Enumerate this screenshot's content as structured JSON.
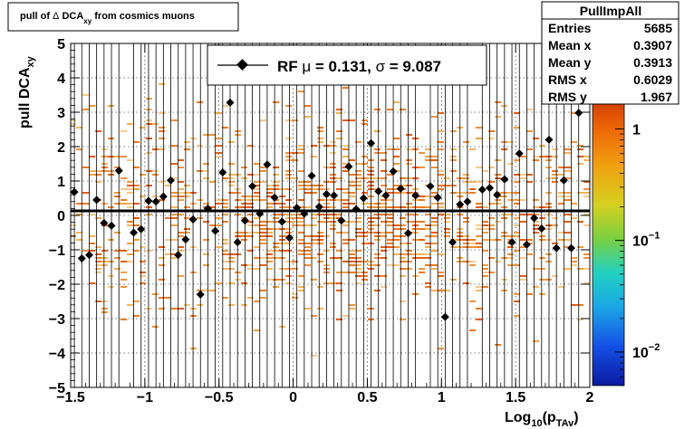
{
  "title_box": {
    "prefix": "pull of ",
    "delta": "Δ",
    "main": " DCA",
    "sub": "xy",
    "suffix": " from cosmics muons"
  },
  "stats_box": {
    "name": "PullImpAll",
    "rows": [
      {
        "label": "Entries",
        "value": "5685"
      },
      {
        "label": "Mean x",
        "value": "0.3907"
      },
      {
        "label": "Mean y",
        "value": "0.3913"
      },
      {
        "label": "RMS x",
        "value": "0.6029"
      },
      {
        "label": "RMS y",
        "value": "1.967"
      }
    ]
  },
  "legend": {
    "prefix": "RF ",
    "mu_symbol": "μ",
    "mu_text": " =  0.131, ",
    "sigma_symbol": "σ",
    "sigma_text": " =   9.087"
  },
  "chart_data": {
    "type": "scatter",
    "xlabel_main": "Log",
    "xlabel_sub1": "10",
    "xlabel_mid": "(p",
    "xlabel_sub2": "TAv",
    "xlabel_end": ")",
    "ylabel_main": "pull DCA",
    "ylabel_sub": "xy",
    "xlim": [
      -1.5,
      2
    ],
    "ylim": [
      -5,
      5
    ],
    "x_ticks": [
      {
        "v": -1.5,
        "label": "−1.5"
      },
      {
        "v": -1,
        "label": "−1"
      },
      {
        "v": -0.5,
        "label": "−0.5"
      },
      {
        "v": 0,
        "label": "0"
      },
      {
        "v": 0.5,
        "label": "0.5"
      },
      {
        "v": 1,
        "label": "1"
      },
      {
        "v": 1.5,
        "label": "1.5"
      },
      {
        "v": 2,
        "label": "2"
      }
    ],
    "y_ticks": [
      {
        "v": 5,
        "label": "5"
      },
      {
        "v": 4,
        "label": "4"
      },
      {
        "v": 3,
        "label": "3"
      },
      {
        "v": 2,
        "label": "2"
      },
      {
        "v": 1,
        "label": "1"
      },
      {
        "v": 0,
        "label": "0"
      },
      {
        "v": -1,
        "label": "−1"
      },
      {
        "v": -2,
        "label": "−2"
      },
      {
        "v": -3,
        "label": "−3"
      },
      {
        "v": -4,
        "label": "−4"
      },
      {
        "v": -5,
        "label": "−5"
      }
    ],
    "grid": true,
    "fit_line": {
      "y": 0.131
    },
    "colorbar": {
      "scale": "log",
      "min": 0.005,
      "max": 1.7,
      "ticks": [
        {
          "v": 1,
          "base": "1",
          "exp": ""
        },
        {
          "v": 0.1,
          "base": "10",
          "exp": "−1"
        },
        {
          "v": 0.01,
          "base": "10",
          "exp": "−2"
        }
      ]
    },
    "profile_points": [
      {
        "x": -1.475,
        "y": 0.68
      },
      {
        "x": -1.425,
        "y": -1.25
      },
      {
        "x": -1.375,
        "y": -1.15
      },
      {
        "x": -1.325,
        "y": 0.45
      },
      {
        "x": -1.275,
        "y": -0.22
      },
      {
        "x": -1.225,
        "y": -0.3
      },
      {
        "x": -1.175,
        "y": 1.3
      },
      {
        "x": -1.075,
        "y": -0.5
      },
      {
        "x": -1.025,
        "y": -0.4
      },
      {
        "x": -0.975,
        "y": 0.42
      },
      {
        "x": -0.925,
        "y": 0.4
      },
      {
        "x": -0.875,
        "y": 0.55
      },
      {
        "x": -0.825,
        "y": 1.02
      },
      {
        "x": -0.775,
        "y": -1.15
      },
      {
        "x": -0.725,
        "y": -0.7
      },
      {
        "x": -0.675,
        "y": -0.12
      },
      {
        "x": -0.625,
        "y": -2.3
      },
      {
        "x": -0.575,
        "y": 0.2
      },
      {
        "x": -0.525,
        "y": -0.45
      },
      {
        "x": -0.475,
        "y": 1.25
      },
      {
        "x": -0.425,
        "y": 3.28
      },
      {
        "x": -0.375,
        "y": -0.78
      },
      {
        "x": -0.325,
        "y": -0.15
      },
      {
        "x": -0.275,
        "y": 0.85
      },
      {
        "x": -0.225,
        "y": 0.05
      },
      {
        "x": -0.175,
        "y": 1.48
      },
      {
        "x": -0.125,
        "y": 0.52
      },
      {
        "x": -0.075,
        "y": -0.18
      },
      {
        "x": -0.025,
        "y": -0.65
      },
      {
        "x": 0.025,
        "y": 0.22
      },
      {
        "x": 0.075,
        "y": 0.05
      },
      {
        "x": 0.125,
        "y": 1.15
      },
      {
        "x": 0.175,
        "y": 0.25
      },
      {
        "x": 0.225,
        "y": 0.62
      },
      {
        "x": 0.275,
        "y": 0.58
      },
      {
        "x": 0.325,
        "y": -0.15
      },
      {
        "x": 0.375,
        "y": 1.42
      },
      {
        "x": 0.425,
        "y": 0.18
      },
      {
        "x": 0.475,
        "y": 0.5
      },
      {
        "x": 0.525,
        "y": 2.1
      },
      {
        "x": 0.575,
        "y": 0.7
      },
      {
        "x": 0.625,
        "y": 0.58
      },
      {
        "x": 0.675,
        "y": 1.28
      },
      {
        "x": 0.725,
        "y": 0.78
      },
      {
        "x": 0.775,
        "y": -0.52
      },
      {
        "x": 0.825,
        "y": 0.58
      },
      {
        "x": 0.925,
        "y": 0.85
      },
      {
        "x": 0.975,
        "y": 0.52
      },
      {
        "x": 1.025,
        "y": -2.95
      },
      {
        "x": 1.075,
        "y": -0.78
      },
      {
        "x": 1.125,
        "y": 0.32
      },
      {
        "x": 1.175,
        "y": 0.4
      },
      {
        "x": 1.275,
        "y": 0.75
      },
      {
        "x": 1.325,
        "y": 0.8
      },
      {
        "x": 1.375,
        "y": 0.6
      },
      {
        "x": 1.425,
        "y": 1.05
      },
      {
        "x": 1.475,
        "y": -0.78
      },
      {
        "x": 1.525,
        "y": 1.8
      },
      {
        "x": 1.575,
        "y": -0.85
      },
      {
        "x": 1.625,
        "y": -0.08
      },
      {
        "x": 1.675,
        "y": -0.38
      },
      {
        "x": 1.725,
        "y": 2.2
      },
      {
        "x": 1.775,
        "y": -0.95
      },
      {
        "x": 1.825,
        "y": 1.02
      },
      {
        "x": 1.875,
        "y": -0.95
      },
      {
        "x": 1.925,
        "y": 2.98
      }
    ]
  }
}
